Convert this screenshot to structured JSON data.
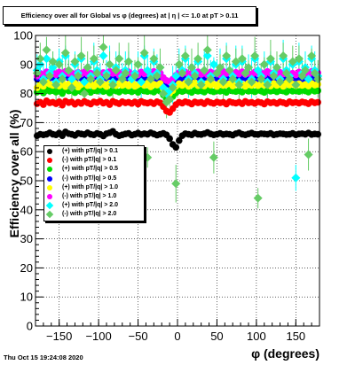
{
  "title": "Efficiency over all for Global vs φ (degrees) at | η | <= 1.0 at pT > 0.11",
  "timestamp": "Thu Oct 15 19:24:08 2020",
  "chart_data": {
    "type": "scatter",
    "title": "Efficiency over all for Global vs φ (degrees) at | η | <= 1.0 at pT > 0.11",
    "xlabel": "φ (degrees)",
    "ylabel": "Efficiency over all (%)",
    "xlim": [
      -180,
      180
    ],
    "ylim": [
      0,
      100
    ],
    "x_ticks": [
      -150,
      -100,
      -50,
      0,
      50,
      100,
      150
    ],
    "y_ticks": [
      0,
      10,
      20,
      30,
      40,
      50,
      60,
      70,
      80,
      90,
      100
    ],
    "grid": true,
    "legend_position": "left",
    "x_bin_width_deg": 4,
    "series": [
      {
        "name": "(+) with pT/|q| > 0.1",
        "color": "#000000",
        "marker": "circle",
        "values": [
          65.5,
          66,
          65.8,
          66,
          66.5,
          66,
          65.8,
          66.4,
          65.5,
          66.8,
          66.2,
          66,
          65.6,
          66.3,
          66.1,
          65.9,
          66.5,
          66,
          65.8,
          66.3,
          66,
          65.4,
          66.2,
          66.5,
          67,
          66,
          65.5,
          65.8,
          66.1,
          66.3,
          65.7,
          66,
          66.4,
          65.9,
          66.2,
          66,
          66.5,
          66.1,
          65.7,
          66,
          66.3,
          65.8,
          64.5,
          62.5,
          61.5,
          63.8,
          65.5,
          66.2,
          66,
          65.8,
          66.4,
          66,
          65.9,
          66.2,
          66.6,
          66.1,
          65.8,
          66,
          66.3,
          65.9,
          66.1,
          66,
          65.7,
          66.2,
          66.5,
          66,
          65.8,
          66.1,
          66.4,
          66,
          65.9,
          66.2,
          66.1,
          66,
          66.3,
          65.8,
          66,
          66.2,
          66.1,
          65.9,
          66,
          66.3,
          65.8,
          66.1,
          66.2,
          66,
          66.4,
          65.9,
          66.1,
          66
        ]
      },
      {
        "name": "(-) with pT/|q| > 0.1",
        "color": "#ff0000",
        "marker": "circle",
        "values": [
          76.5,
          77,
          76.2,
          77.5,
          76.8,
          77,
          76.5,
          77.2,
          76,
          77.4,
          76.9,
          77.1,
          76.3,
          77,
          76.6,
          77.3,
          76.8,
          76.4,
          77.1,
          76.9,
          77.4,
          76.7,
          77,
          76.2,
          77.3,
          76.9,
          76.5,
          77.2,
          76.8,
          77,
          76.6,
          77.1,
          76.4,
          77.3,
          76.9,
          76.7,
          77,
          76.5,
          77.2,
          76.8,
          75.5,
          74,
          73.5,
          74.8,
          76.2,
          77,
          76.7,
          77.2,
          76.9,
          76.4,
          77.1,
          76.8,
          77,
          76.5,
          77.3,
          76.9,
          76.6,
          77.1,
          76.8,
          77,
          76.4,
          77.2,
          76.9,
          76.7,
          77,
          76.5,
          77.3,
          76.8,
          77,
          76.6,
          77.1,
          76.9,
          76.4,
          77.2,
          76.8,
          77,
          76.6,
          77.1,
          76.9,
          76.5,
          77.2,
          76.8,
          77,
          76.7,
          77.1,
          76.9,
          76.5,
          77.2,
          76.8,
          77
        ]
      },
      {
        "name": "(+) with pT/|q| > 0.5",
        "color": "#00dd00",
        "marker": "circle",
        "values": [
          80.5,
          81,
          80.2,
          81.5,
          80.8,
          81,
          80.5,
          81.2,
          80,
          81.4,
          80.9,
          81.1,
          80.3,
          81,
          80.6,
          81.3,
          80.8,
          80.4,
          81.1,
          80.9,
          81.4,
          80.7,
          81,
          80.2,
          81.3,
          80.9,
          80.5,
          81.2,
          80.8,
          81,
          80.6,
          81.1,
          80.4,
          81.3,
          80.9,
          80.7,
          81,
          80.5,
          81.2,
          80.8,
          79.5,
          78.5,
          78,
          79,
          80.2,
          81,
          80.7,
          81.2,
          80.9,
          80.4,
          81.1,
          80.8,
          81,
          80.5,
          81.3,
          80.9,
          80.6,
          81.1,
          80.8,
          81,
          80.4,
          81.2,
          80.9,
          80.7,
          81,
          80.5,
          81.3,
          80.8,
          81,
          80.6,
          81.1,
          80.9,
          80.4,
          81.2,
          80.8,
          81,
          80.6,
          81.1,
          80.9,
          80.5,
          81.2,
          80.8,
          81,
          80.7,
          81.1,
          80.9,
          80.5,
          81.2,
          80.8,
          81
        ]
      },
      {
        "name": "(-) with pT/|q| > 0.5",
        "color": "#0000ff",
        "marker": "circle",
        "values": [
          85,
          85.5,
          84.8,
          86,
          85.3,
          85.6,
          84.9,
          85.7,
          85.1,
          85.9,
          85.4,
          85.2,
          84.7,
          85.8,
          85.3,
          85.6,
          85,
          85.5,
          84.9,
          85.7,
          85.2,
          85.9,
          85.4,
          84.8,
          85.6,
          85.1,
          85.8,
          85.3,
          85,
          85.5,
          84.9,
          85.7,
          85.2,
          85.6,
          85.4,
          84.8,
          85.9,
          85.3,
          85.1,
          85.6,
          84.5,
          83.5,
          83,
          84,
          85,
          85.6,
          85.3,
          85.8,
          85,
          85.5,
          84.9,
          85.7,
          85.2,
          85.6,
          85.4,
          84.8,
          85.9,
          85.3,
          85.1,
          85.6,
          85,
          85.5,
          84.9,
          85.7,
          85.2,
          85.6,
          85.4,
          84.8,
          85.9,
          85.3,
          85.1,
          85.6,
          85,
          85.5,
          84.9,
          85.7,
          85.2,
          85.6,
          85.4,
          84.8,
          85.9,
          85.3,
          85.1,
          85.6,
          85,
          85.5,
          84.9,
          85.7,
          85.2,
          85.6
        ]
      },
      {
        "name": "(+) with pT/|q| > 1.0",
        "color": "#ffff00",
        "marker": "circle",
        "values": [
          82,
          83,
          82.5,
          84,
          83.2,
          82.8,
          83.5,
          82.6,
          83.9,
          82.4,
          83.3,
          82.9,
          83.6,
          82.2,
          83.1,
          83.8,
          82.7,
          83.4,
          82.5,
          83.7,
          82.9,
          83.2,
          82.4,
          83.6,
          83,
          82.7,
          83.5,
          82.8,
          83.3,
          82.6,
          83.9,
          82.5,
          83.1,
          83.4,
          82.8,
          83.6,
          82.3,
          83.2,
          82.9,
          83.5,
          81.5,
          80.5,
          80,
          81,
          82.5,
          83.4,
          82.8,
          83.6,
          82.5,
          83.1,
          83.8,
          82.7,
          83.3,
          82.6,
          83.5,
          82.9,
          83.2,
          82.4,
          83.7,
          82.8,
          83.1,
          83.4,
          82.6,
          83.5,
          82.9,
          83.2,
          82.5,
          83.6,
          82.8,
          83.3,
          82.7,
          83.4,
          82.9,
          83.1,
          82.6,
          83.5,
          82.8,
          83.2,
          82.5,
          83.6,
          82.9,
          83.3,
          82.7,
          83.4,
          82.8,
          83.1,
          82.6,
          83.5,
          82.9,
          83.2
        ]
      },
      {
        "name": "(-) with pT/|q| > 1.0",
        "color": "#ff00ff",
        "marker": "circle",
        "values": [
          86,
          87,
          86.4,
          87.5,
          86.8,
          87.2,
          86.5,
          87.4,
          86.2,
          87.6,
          86.9,
          87.1,
          86.3,
          87.3,
          86.7,
          87.5,
          86.6,
          87,
          86.4,
          87.4,
          86.8,
          87.2,
          86.5,
          87.6,
          86.9,
          87.1,
          86.3,
          87.3,
          86.7,
          87.5,
          86.6,
          87,
          86.4,
          87.4,
          86.8,
          87.2,
          86.5,
          87.6,
          86.9,
          87.1,
          85.5,
          84.5,
          84,
          85,
          86.3,
          87.2,
          86.8,
          87.4,
          86.5,
          87.1,
          86.7,
          87.5,
          86.6,
          87,
          86.4,
          87.4,
          86.8,
          87.2,
          86.5,
          87.6,
          86.9,
          87.1,
          86.3,
          87.3,
          86.7,
          87.5,
          86.6,
          87,
          86.4,
          87.4,
          86.8,
          87.2,
          86.5,
          87.6,
          86.9,
          87.1,
          86.3,
          87.3,
          86.7,
          87.5,
          86.6,
          87,
          86.4,
          87.4,
          86.8,
          87.2,
          86.5,
          87.6,
          86.9,
          87.1
        ]
      },
      {
        "name": "(+) with pT/|q| > 2.0",
        "color": "#00ffff",
        "marker": "diamond",
        "values": [
          88,
          90,
          85,
          92,
          87,
          89,
          84,
          91,
          86,
          93,
          88,
          85,
          90,
          87,
          92,
          84,
          89,
          86,
          91,
          88,
          85,
          93,
          87,
          90,
          84,
          89,
          92,
          86,
          88,
          91,
          85,
          87,
          90,
          84,
          93,
          88,
          86,
          91,
          87,
          89,
          82,
          80,
          81,
          83,
          86,
          90,
          88,
          92,
          85,
          89,
          87,
          91,
          84,
          88,
          93,
          86,
          90,
          87,
          89,
          85,
          92,
          88,
          86,
          90,
          84,
          91,
          87,
          89,
          85,
          92,
          88,
          86,
          90,
          84,
          91,
          87,
          89,
          85,
          92,
          88,
          86,
          90,
          51,
          91,
          87,
          89,
          85,
          92,
          88,
          86
        ]
      },
      {
        "name": "(-) with pT/|q| > 2.0",
        "color": "#66cc66",
        "marker": "diamond",
        "values": [
          87,
          92,
          84,
          95,
          86,
          91,
          83,
          90,
          85,
          94,
          88,
          82,
          91,
          86,
          93,
          80,
          89,
          85,
          92,
          87,
          84,
          96,
          86,
          90,
          83,
          88,
          92,
          85,
          87,
          91,
          56,
          86,
          90,
          52,
          94,
          58,
          85,
          92,
          86,
          89,
          80,
          77,
          78,
          82,
          49,
          90,
          87,
          93,
          84,
          89,
          86,
          92,
          83,
          88,
          95,
          85,
          58,
          87,
          89,
          84,
          93,
          88,
          85,
          91,
          83,
          92,
          87,
          89,
          84,
          93,
          44,
          85,
          90,
          83,
          92,
          86,
          89,
          84,
          93,
          87,
          85,
          91,
          83,
          92,
          86,
          88,
          59,
          93,
          87,
          85
        ]
      }
    ]
  }
}
